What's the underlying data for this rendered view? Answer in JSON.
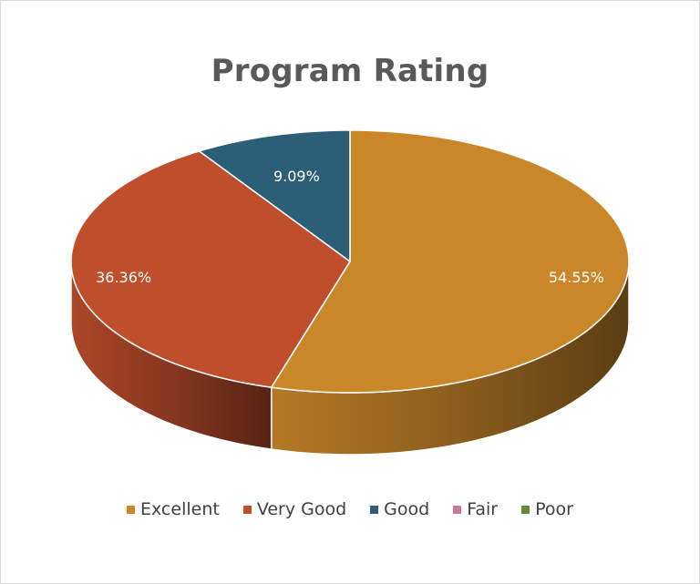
{
  "chart_data": {
    "type": "pie",
    "title": "Program Rating",
    "categories": [
      "Excellent",
      "Very Good",
      "Good",
      "Fair",
      "Poor"
    ],
    "values": [
      54.55,
      36.36,
      9.09,
      0,
      0
    ],
    "data_labels": [
      "54.55%",
      "36.36%",
      "9.09%",
      "",
      ""
    ],
    "colors": [
      "#C9872A",
      "#BF4E2C",
      "#2D5E78",
      "#C97B9B",
      "#5E8C3A"
    ],
    "legend_position": "bottom",
    "three_d": true
  }
}
